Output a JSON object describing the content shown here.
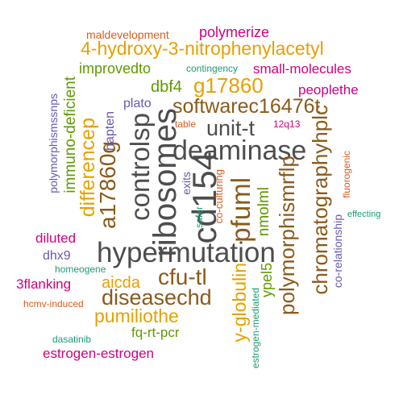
{
  "colors": {
    "gray": "#4d4d4d",
    "brown": "#8b5a1a",
    "gold": "#e6a100",
    "magenta": "#d0007f",
    "green": "#5f9900",
    "teal": "#1a9b77",
    "orange": "#d85c1e",
    "purple": "#6a58b0"
  },
  "words": [
    {
      "text": "hypermutation",
      "color": "gray"
    },
    {
      "text": "deaminase",
      "color": "gray"
    },
    {
      "text": "cd154",
      "color": "gray"
    },
    {
      "text": "ribosomes",
      "color": "gray"
    },
    {
      "text": "controlsp",
      "color": "gray"
    },
    {
      "text": "unit-t",
      "color": "gray"
    },
    {
      "text": "a17860g",
      "color": "brown"
    },
    {
      "text": "pfuml",
      "color": "brown"
    },
    {
      "text": "polymorphismrflp",
      "color": "brown"
    },
    {
      "text": "chromatographyhplc",
      "color": "brown"
    },
    {
      "text": "softwarec16476t",
      "color": "brown"
    },
    {
      "text": "diseasechd",
      "color": "brown"
    },
    {
      "text": "cfu-tl",
      "color": "brown"
    },
    {
      "text": "4-hydroxy-3-nitrophenylacetyl",
      "color": "gold"
    },
    {
      "text": "g17860",
      "color": "gold"
    },
    {
      "text": "differencep",
      "color": "gold"
    },
    {
      "text": "pumiliothe",
      "color": "gold"
    },
    {
      "text": "aicda",
      "color": "gold"
    },
    {
      "text": "y-globulin",
      "color": "gold"
    },
    {
      "text": "polymerize",
      "color": "magenta"
    },
    {
      "text": "small-molecules",
      "color": "magenta"
    },
    {
      "text": "peoplethe",
      "color": "magenta"
    },
    {
      "text": "diluted",
      "color": "magenta"
    },
    {
      "text": "3flanking",
      "color": "magenta"
    },
    {
      "text": "estrogen-estrogen",
      "color": "magenta"
    },
    {
      "text": "12q13",
      "color": "magenta"
    },
    {
      "text": "improvedto",
      "color": "green"
    },
    {
      "text": "dbf4",
      "color": "green"
    },
    {
      "text": "immuno-deficient",
      "color": "green"
    },
    {
      "text": "nmolml",
      "color": "green"
    },
    {
      "text": "ypel5",
      "color": "green"
    },
    {
      "text": "fq-rt-pcr",
      "color": "green"
    },
    {
      "text": "contingency",
      "color": "teal"
    },
    {
      "text": "safer",
      "color": "teal"
    },
    {
      "text": "homeogene",
      "color": "teal"
    },
    {
      "text": "dasatinib",
      "color": "teal"
    },
    {
      "text": "estrogen-mediated",
      "color": "teal"
    },
    {
      "text": "effecting",
      "color": "teal"
    },
    {
      "text": "maldevelopment",
      "color": "orange"
    },
    {
      "text": "table",
      "color": "orange"
    },
    {
      "text": "co-culturing",
      "color": "orange"
    },
    {
      "text": "hcmv-induced",
      "color": "orange"
    },
    {
      "text": "fluorogenic",
      "color": "orange"
    },
    {
      "text": "plato",
      "color": "purple"
    },
    {
      "text": "hapten",
      "color": "purple"
    },
    {
      "text": "polymorphismssnps",
      "color": "purple"
    },
    {
      "text": "exits",
      "color": "purple"
    },
    {
      "text": "dhx9",
      "color": "purple"
    },
    {
      "text": "co-relationship",
      "color": "purple"
    }
  ]
}
